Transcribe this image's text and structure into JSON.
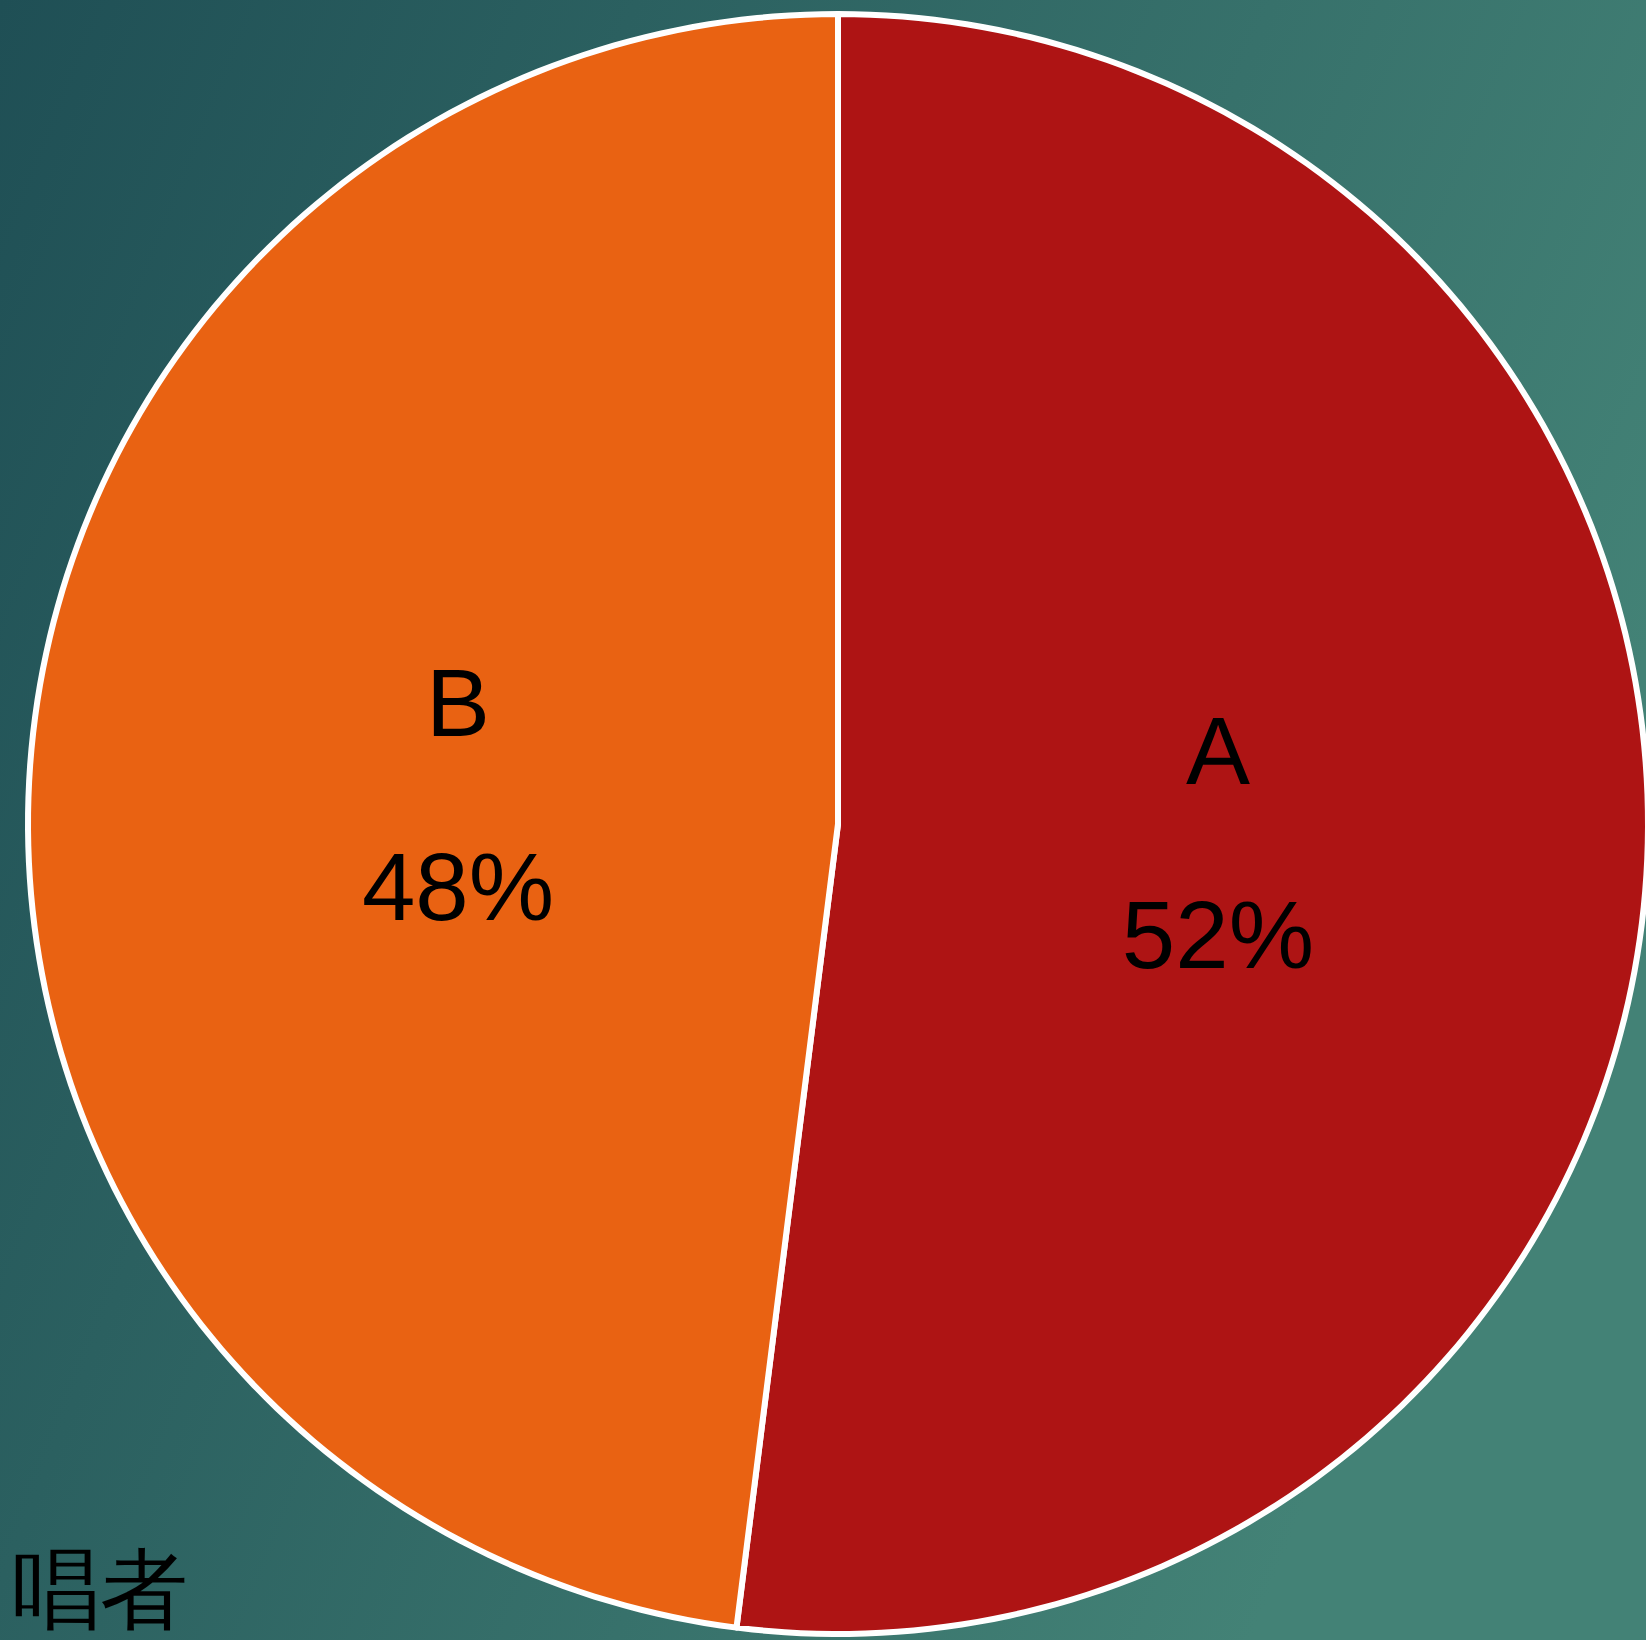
{
  "chart_data": {
    "type": "pie",
    "categories": [
      "A",
      "B"
    ],
    "values": [
      52,
      48
    ],
    "colors": [
      "#ae1414",
      "#e96212"
    ],
    "value_labels": [
      "52%",
      "48%"
    ],
    "annotations": [
      "唱者"
    ]
  }
}
